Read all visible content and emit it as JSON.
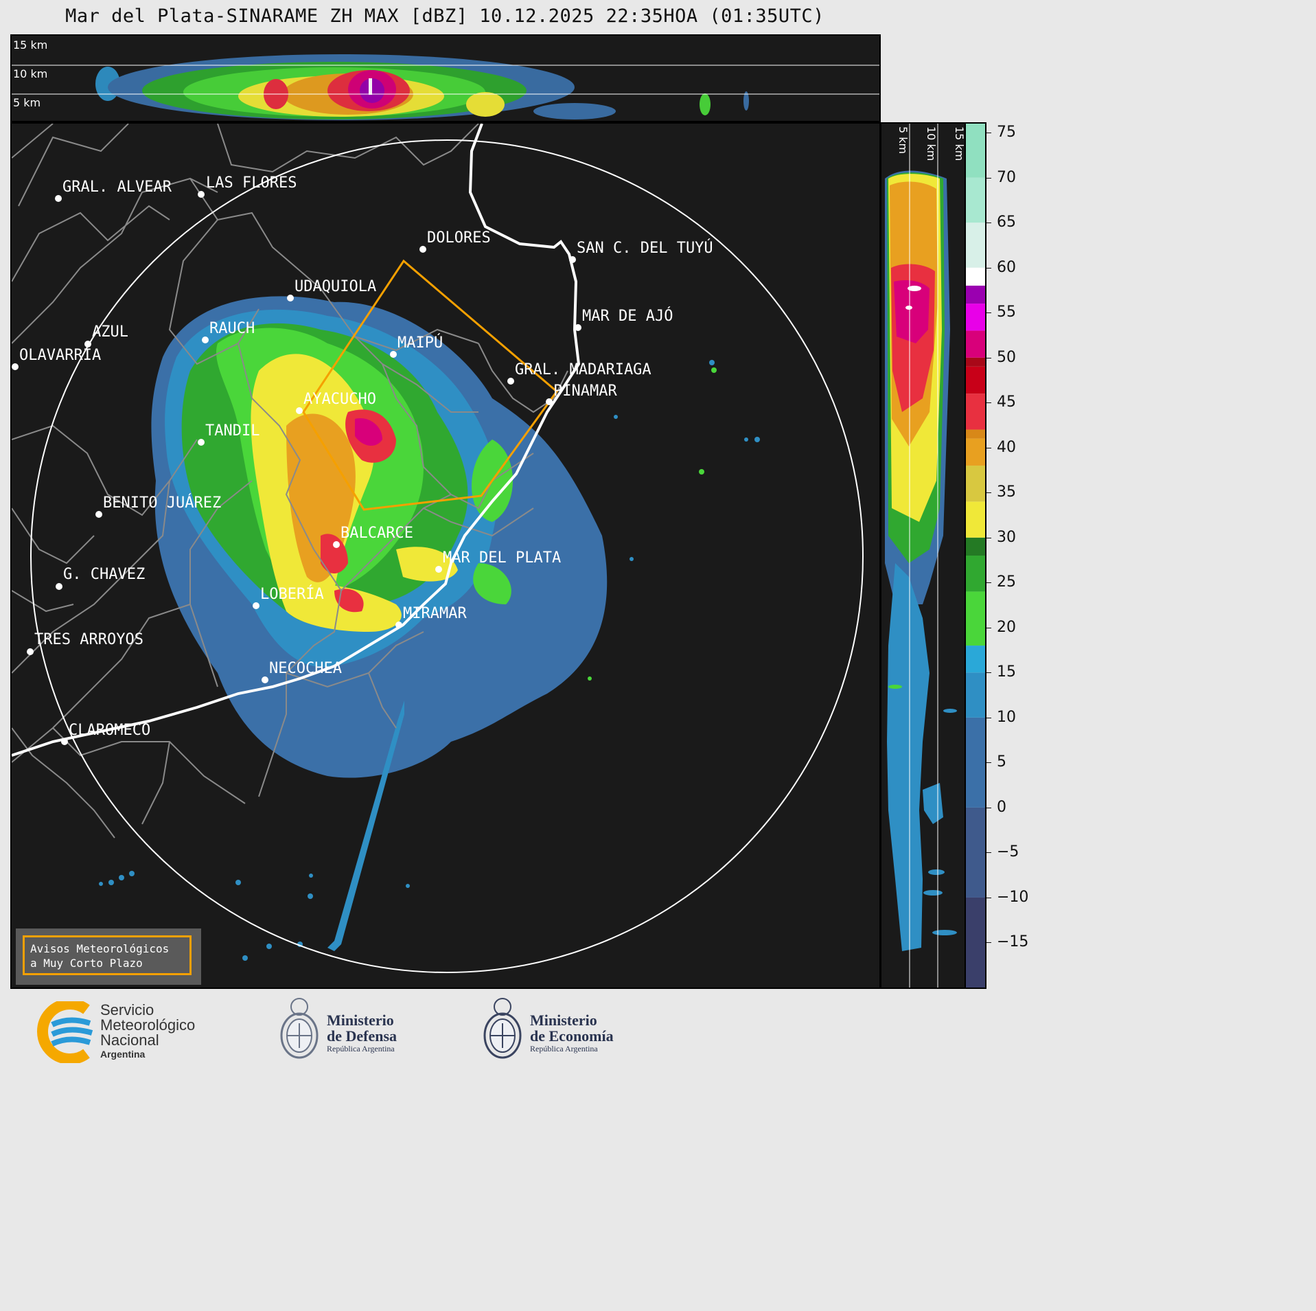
{
  "title": "Mar del Plata-SINARAME ZH MAX [dBZ] 10.12.2025 22:35HOA (01:35UTC)",
  "top_section": {
    "altitude_labels": [
      "15 km",
      "10 km",
      "5 km"
    ]
  },
  "side_section": {
    "altitude_labels": [
      "5 km",
      "10 km",
      "15 km"
    ]
  },
  "cities": [
    {
      "name": "GRAL. ALVEAR"
    },
    {
      "name": "LAS FLORES"
    },
    {
      "name": "DOLORES"
    },
    {
      "name": "SAN C. DEL TUYÚ"
    },
    {
      "name": "UDAQUIOLA"
    },
    {
      "name": "MAR DE AJÓ"
    },
    {
      "name": "AZUL"
    },
    {
      "name": "RAUCH"
    },
    {
      "name": "MAIPÚ"
    },
    {
      "name": "OLAVARRÍA"
    },
    {
      "name": "GRAL. MADARIAGA"
    },
    {
      "name": "PINAMAR"
    },
    {
      "name": "AYACUCHO"
    },
    {
      "name": "TANDIL"
    },
    {
      "name": "BENITO JUÁREZ"
    },
    {
      "name": "BALCARCE"
    },
    {
      "name": "MAR DEL PLATA"
    },
    {
      "name": "G. CHAVEZ"
    },
    {
      "name": "LOBERÍA"
    },
    {
      "name": "MIRAMAR"
    },
    {
      "name": "TRES ARROYOS"
    },
    {
      "name": "NECOCHEA"
    },
    {
      "name": "CLAROMECO"
    }
  ],
  "warning_box": {
    "line1": "Avisos Meteorológicos",
    "line2": "a Muy Corto Plazo",
    "color": "#f5a000"
  },
  "colorbar": {
    "unit": "dBZ",
    "min": -20,
    "max": 76,
    "tick_labels": [
      "75",
      "70",
      "65",
      "60",
      "55",
      "50",
      "45",
      "40",
      "35",
      "30",
      "25",
      "20",
      "15",
      "10",
      "5",
      "0",
      "−5",
      "−10",
      "−15"
    ],
    "stops": [
      {
        "from": -20,
        "color": "#3a3f6a"
      },
      {
        "from": -10,
        "color": "#3f5a8c"
      },
      {
        "from": 0,
        "color": "#3b70a8"
      },
      {
        "from": 10,
        "color": "#2f8fc4"
      },
      {
        "from": 15,
        "color": "#2aa8d8"
      },
      {
        "from": 18,
        "color": "#4ad63a"
      },
      {
        "from": 24,
        "color": "#30a830"
      },
      {
        "from": 28,
        "color": "#247a24"
      },
      {
        "from": 30,
        "color": "#f0e838"
      },
      {
        "from": 34,
        "color": "#d8c840"
      },
      {
        "from": 38,
        "color": "#e8a020"
      },
      {
        "from": 41,
        "color": "#d88818"
      },
      {
        "from": 42,
        "color": "#e83040"
      },
      {
        "from": 46,
        "color": "#c80018"
      },
      {
        "from": 49,
        "color": "#a80818"
      },
      {
        "from": 50,
        "color": "#d8007a"
      },
      {
        "from": 53,
        "color": "#e800e8"
      },
      {
        "from": 56,
        "color": "#9a00b0"
      },
      {
        "from": 58,
        "color": "#ffffff"
      },
      {
        "from": 60,
        "color": "#d8f0e8"
      },
      {
        "from": 65,
        "color": "#a8e8d0"
      },
      {
        "from": 70,
        "color": "#90e0c0"
      }
    ]
  },
  "logos": {
    "smn_line1": "Servicio",
    "smn_line2": "Meteorológico",
    "smn_line3": "Nacional",
    "smn_line4": "Argentina",
    "defensa_line1": "Ministerio",
    "defensa_line2": "de Defensa",
    "defensa_line3": "República Argentina",
    "economia_line1": "Ministerio",
    "economia_line2": "de Economía",
    "economia_line3": "República Argentina"
  }
}
